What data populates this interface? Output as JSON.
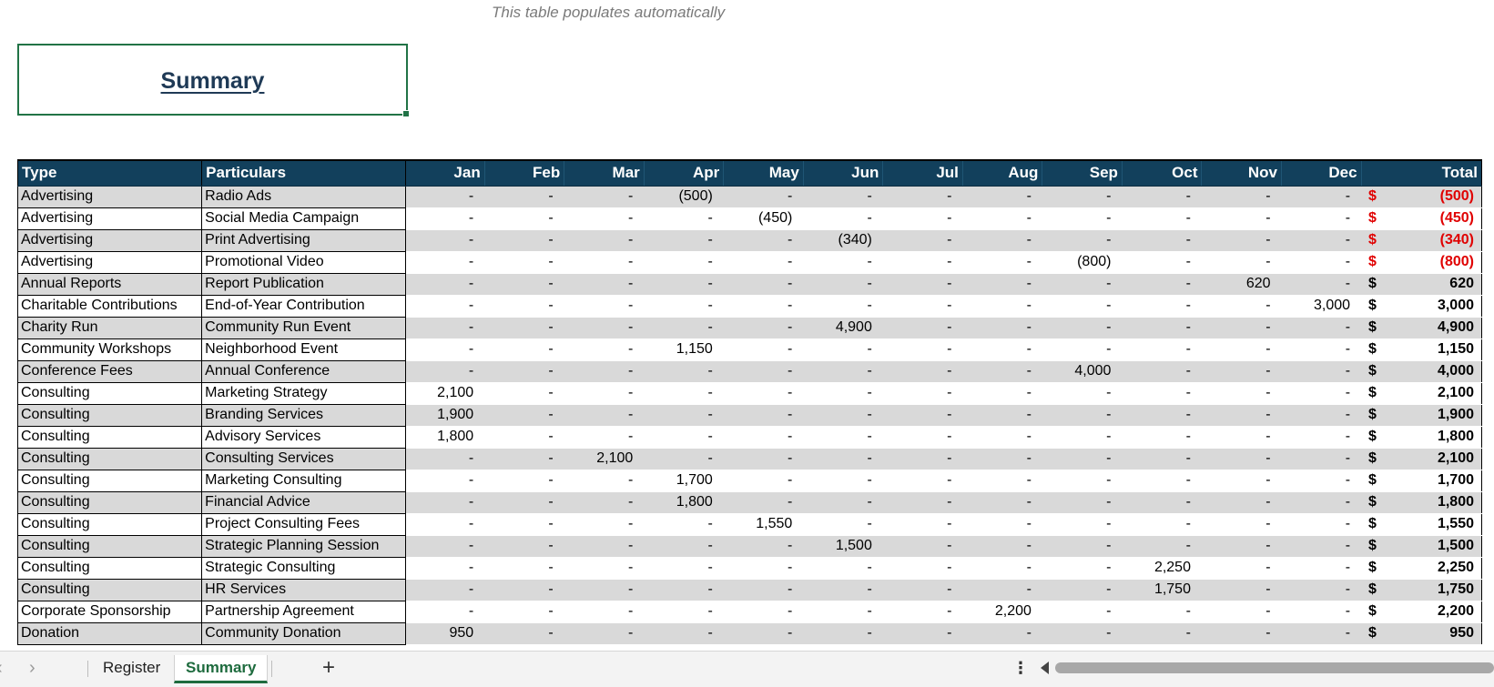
{
  "note": "This table populates automatically",
  "title": "Summary",
  "headers": {
    "type": "Type",
    "particulars": "Particulars",
    "months": [
      "Jan",
      "Feb",
      "Mar",
      "Apr",
      "May",
      "Jun",
      "Jul",
      "Aug",
      "Sep",
      "Oct",
      "Nov",
      "Dec"
    ],
    "total": "Total"
  },
  "currency_symbol": "$",
  "negative_color": "#e00000",
  "rows": [
    {
      "type": "Advertising",
      "particulars": "Radio Ads",
      "months": [
        "-",
        "-",
        "-",
        "(500)",
        "-",
        "-",
        "-",
        "-",
        "-",
        "-",
        "-",
        "-"
      ],
      "total": "(500)",
      "negative": true
    },
    {
      "type": "Advertising",
      "particulars": "Social Media Campaign",
      "months": [
        "-",
        "-",
        "-",
        "-",
        "(450)",
        "-",
        "-",
        "-",
        "-",
        "-",
        "-",
        "-"
      ],
      "total": "(450)",
      "negative": true
    },
    {
      "type": "Advertising",
      "particulars": "Print Advertising",
      "months": [
        "-",
        "-",
        "-",
        "-",
        "-",
        "(340)",
        "-",
        "-",
        "-",
        "-",
        "-",
        "-"
      ],
      "total": "(340)",
      "negative": true
    },
    {
      "type": "Advertising",
      "particulars": "Promotional Video",
      "months": [
        "-",
        "-",
        "-",
        "-",
        "-",
        "-",
        "-",
        "-",
        "(800)",
        "-",
        "-",
        "-"
      ],
      "total": "(800)",
      "negative": true
    },
    {
      "type": "Annual Reports",
      "particulars": "Report Publication",
      "months": [
        "-",
        "-",
        "-",
        "-",
        "-",
        "-",
        "-",
        "-",
        "-",
        "-",
        "620",
        "-"
      ],
      "total": "620",
      "negative": false
    },
    {
      "type": "Charitable Contributions",
      "particulars": "End-of-Year Contribution",
      "months": [
        "-",
        "-",
        "-",
        "-",
        "-",
        "-",
        "-",
        "-",
        "-",
        "-",
        "-",
        "3,000"
      ],
      "total": "3,000",
      "negative": false
    },
    {
      "type": "Charity Run",
      "particulars": "Community Run Event",
      "months": [
        "-",
        "-",
        "-",
        "-",
        "-",
        "4,900",
        "-",
        "-",
        "-",
        "-",
        "-",
        "-"
      ],
      "total": "4,900",
      "negative": false
    },
    {
      "type": "Community Workshops",
      "particulars": "Neighborhood Event",
      "months": [
        "-",
        "-",
        "-",
        "1,150",
        "-",
        "-",
        "-",
        "-",
        "-",
        "-",
        "-",
        "-"
      ],
      "total": "1,150",
      "negative": false
    },
    {
      "type": "Conference Fees",
      "particulars": "Annual Conference",
      "months": [
        "-",
        "-",
        "-",
        "-",
        "-",
        "-",
        "-",
        "-",
        "4,000",
        "-",
        "-",
        "-"
      ],
      "total": "4,000",
      "negative": false
    },
    {
      "type": "Consulting",
      "particulars": "Marketing Strategy",
      "months": [
        "2,100",
        "-",
        "-",
        "-",
        "-",
        "-",
        "-",
        "-",
        "-",
        "-",
        "-",
        "-"
      ],
      "total": "2,100",
      "negative": false
    },
    {
      "type": "Consulting",
      "particulars": "Branding Services",
      "months": [
        "1,900",
        "-",
        "-",
        "-",
        "-",
        "-",
        "-",
        "-",
        "-",
        "-",
        "-",
        "-"
      ],
      "total": "1,900",
      "negative": false
    },
    {
      "type": "Consulting",
      "particulars": "Advisory Services",
      "months": [
        "1,800",
        "-",
        "-",
        "-",
        "-",
        "-",
        "-",
        "-",
        "-",
        "-",
        "-",
        "-"
      ],
      "total": "1,800",
      "negative": false
    },
    {
      "type": "Consulting",
      "particulars": "Consulting Services",
      "months": [
        "-",
        "-",
        "2,100",
        "-",
        "-",
        "-",
        "-",
        "-",
        "-",
        "-",
        "-",
        "-"
      ],
      "total": "2,100",
      "negative": false
    },
    {
      "type": "Consulting",
      "particulars": "Marketing Consulting",
      "months": [
        "-",
        "-",
        "-",
        "1,700",
        "-",
        "-",
        "-",
        "-",
        "-",
        "-",
        "-",
        "-"
      ],
      "total": "1,700",
      "negative": false
    },
    {
      "type": "Consulting",
      "particulars": "Financial Advice",
      "months": [
        "-",
        "-",
        "-",
        "1,800",
        "-",
        "-",
        "-",
        "-",
        "-",
        "-",
        "-",
        "-"
      ],
      "total": "1,800",
      "negative": false
    },
    {
      "type": "Consulting",
      "particulars": "Project Consulting Fees",
      "months": [
        "-",
        "-",
        "-",
        "-",
        "1,550",
        "-",
        "-",
        "-",
        "-",
        "-",
        "-",
        "-"
      ],
      "total": "1,550",
      "negative": false
    },
    {
      "type": "Consulting",
      "particulars": "Strategic Planning Session",
      "months": [
        "-",
        "-",
        "-",
        "-",
        "-",
        "1,500",
        "-",
        "-",
        "-",
        "-",
        "-",
        "-"
      ],
      "total": "1,500",
      "negative": false
    },
    {
      "type": "Consulting",
      "particulars": "Strategic Consulting",
      "months": [
        "-",
        "-",
        "-",
        "-",
        "-",
        "-",
        "-",
        "-",
        "-",
        "2,250",
        "-",
        "-"
      ],
      "total": "2,250",
      "negative": false
    },
    {
      "type": "Consulting",
      "particulars": "HR Services",
      "months": [
        "-",
        "-",
        "-",
        "-",
        "-",
        "-",
        "-",
        "-",
        "-",
        "1,750",
        "-",
        "-"
      ],
      "total": "1,750",
      "negative": false
    },
    {
      "type": "Corporate Sponsorship",
      "particulars": "Partnership Agreement",
      "months": [
        "-",
        "-",
        "-",
        "-",
        "-",
        "-",
        "-",
        "2,200",
        "-",
        "-",
        "-",
        "-"
      ],
      "total": "2,200",
      "negative": false
    },
    {
      "type": "Donation",
      "particulars": "Community Donation",
      "months": [
        "950",
        "-",
        "-",
        "-",
        "-",
        "-",
        "-",
        "-",
        "-",
        "-",
        "-",
        "-"
      ],
      "total": "950",
      "negative": false
    }
  ],
  "sheet_tabs": [
    "Register",
    "Summary"
  ],
  "active_tab": "Summary",
  "nav": {
    "prev_icon": "chevron-left-icon",
    "next_icon": "chevron-right-icon",
    "add_icon": "plus-icon",
    "more_icon": "vertical-dots-icon"
  }
}
